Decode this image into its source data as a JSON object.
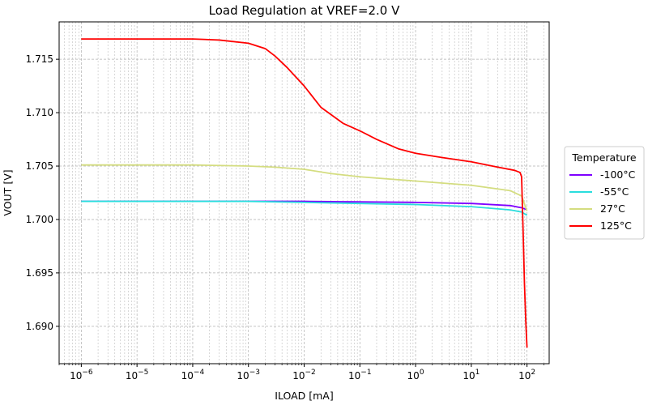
{
  "chart_data": {
    "type": "line",
    "title": "Load Regulation at VREF=2.0 V",
    "xlabel": "ILOAD [mA]",
    "ylabel": "VOUT [V]",
    "xscale": "log",
    "xlim": [
      4e-07,
      250
    ],
    "ylim": [
      1.6865,
      1.7185
    ],
    "x_ticks": [
      {
        "value": 1e-06,
        "base": "10",
        "exp": "−6"
      },
      {
        "value": 1e-05,
        "base": "10",
        "exp": "−5"
      },
      {
        "value": 0.0001,
        "base": "10",
        "exp": "−4"
      },
      {
        "value": 0.001,
        "base": "10",
        "exp": "−3"
      },
      {
        "value": 0.01,
        "base": "10",
        "exp": "−2"
      },
      {
        "value": 0.1,
        "base": "10",
        "exp": "−1"
      },
      {
        "value": 1,
        "base": "10",
        "exp": "0"
      },
      {
        "value": 10,
        "base": "10",
        "exp": "1"
      },
      {
        "value": 100,
        "base": "10",
        "exp": "2"
      }
    ],
    "y_ticks": [
      {
        "value": 1.69,
        "label": "1.690"
      },
      {
        "value": 1.695,
        "label": "1.695"
      },
      {
        "value": 1.7,
        "label": "1.700"
      },
      {
        "value": 1.705,
        "label": "1.705"
      },
      {
        "value": 1.71,
        "label": "1.710"
      },
      {
        "value": 1.715,
        "label": "1.715"
      }
    ],
    "grid": true,
    "legend": {
      "title": "Temperature",
      "placement": "right"
    },
    "series": [
      {
        "name": "-100°C",
        "color": "#7f00ff",
        "x": [
          1e-06,
          0.0001,
          0.01,
          1,
          10,
          50,
          80,
          100
        ],
        "y": [
          1.7017,
          1.7017,
          1.7017,
          1.7016,
          1.7015,
          1.7013,
          1.7011,
          1.7009
        ]
      },
      {
        "name": "-55°C",
        "color": "#2adddd",
        "x": [
          1e-06,
          0.0001,
          0.001,
          0.01,
          0.1,
          1,
          10,
          50,
          80,
          100
        ],
        "y": [
          1.7017,
          1.7017,
          1.7017,
          1.7016,
          1.7015,
          1.7014,
          1.7012,
          1.7009,
          1.7007,
          1.7004
        ]
      },
      {
        "name": "27°C",
        "color": "#d4dd80",
        "x": [
          1e-06,
          0.0001,
          0.001,
          0.003,
          0.01,
          0.03,
          0.1,
          1,
          10,
          50,
          80,
          100
        ],
        "y": [
          1.7051,
          1.7051,
          1.705,
          1.7049,
          1.7047,
          1.7043,
          1.704,
          1.7036,
          1.7032,
          1.7027,
          1.7022,
          1.7008
        ]
      },
      {
        "name": "125°C",
        "color": "#ff0000",
        "x": [
          1e-06,
          0.0001,
          0.0003,
          0.001,
          0.002,
          0.003,
          0.005,
          0.01,
          0.02,
          0.05,
          0.1,
          0.2,
          0.5,
          1,
          3,
          10,
          30,
          60,
          75,
          80,
          85,
          90,
          95,
          100
        ],
        "y": [
          1.7169,
          1.7169,
          1.7168,
          1.7165,
          1.716,
          1.7153,
          1.7142,
          1.7125,
          1.7105,
          1.709,
          1.7083,
          1.7075,
          1.7066,
          1.7062,
          1.7058,
          1.7054,
          1.7049,
          1.7046,
          1.7044,
          1.704,
          1.699,
          1.694,
          1.6905,
          1.688
        ]
      }
    ]
  }
}
